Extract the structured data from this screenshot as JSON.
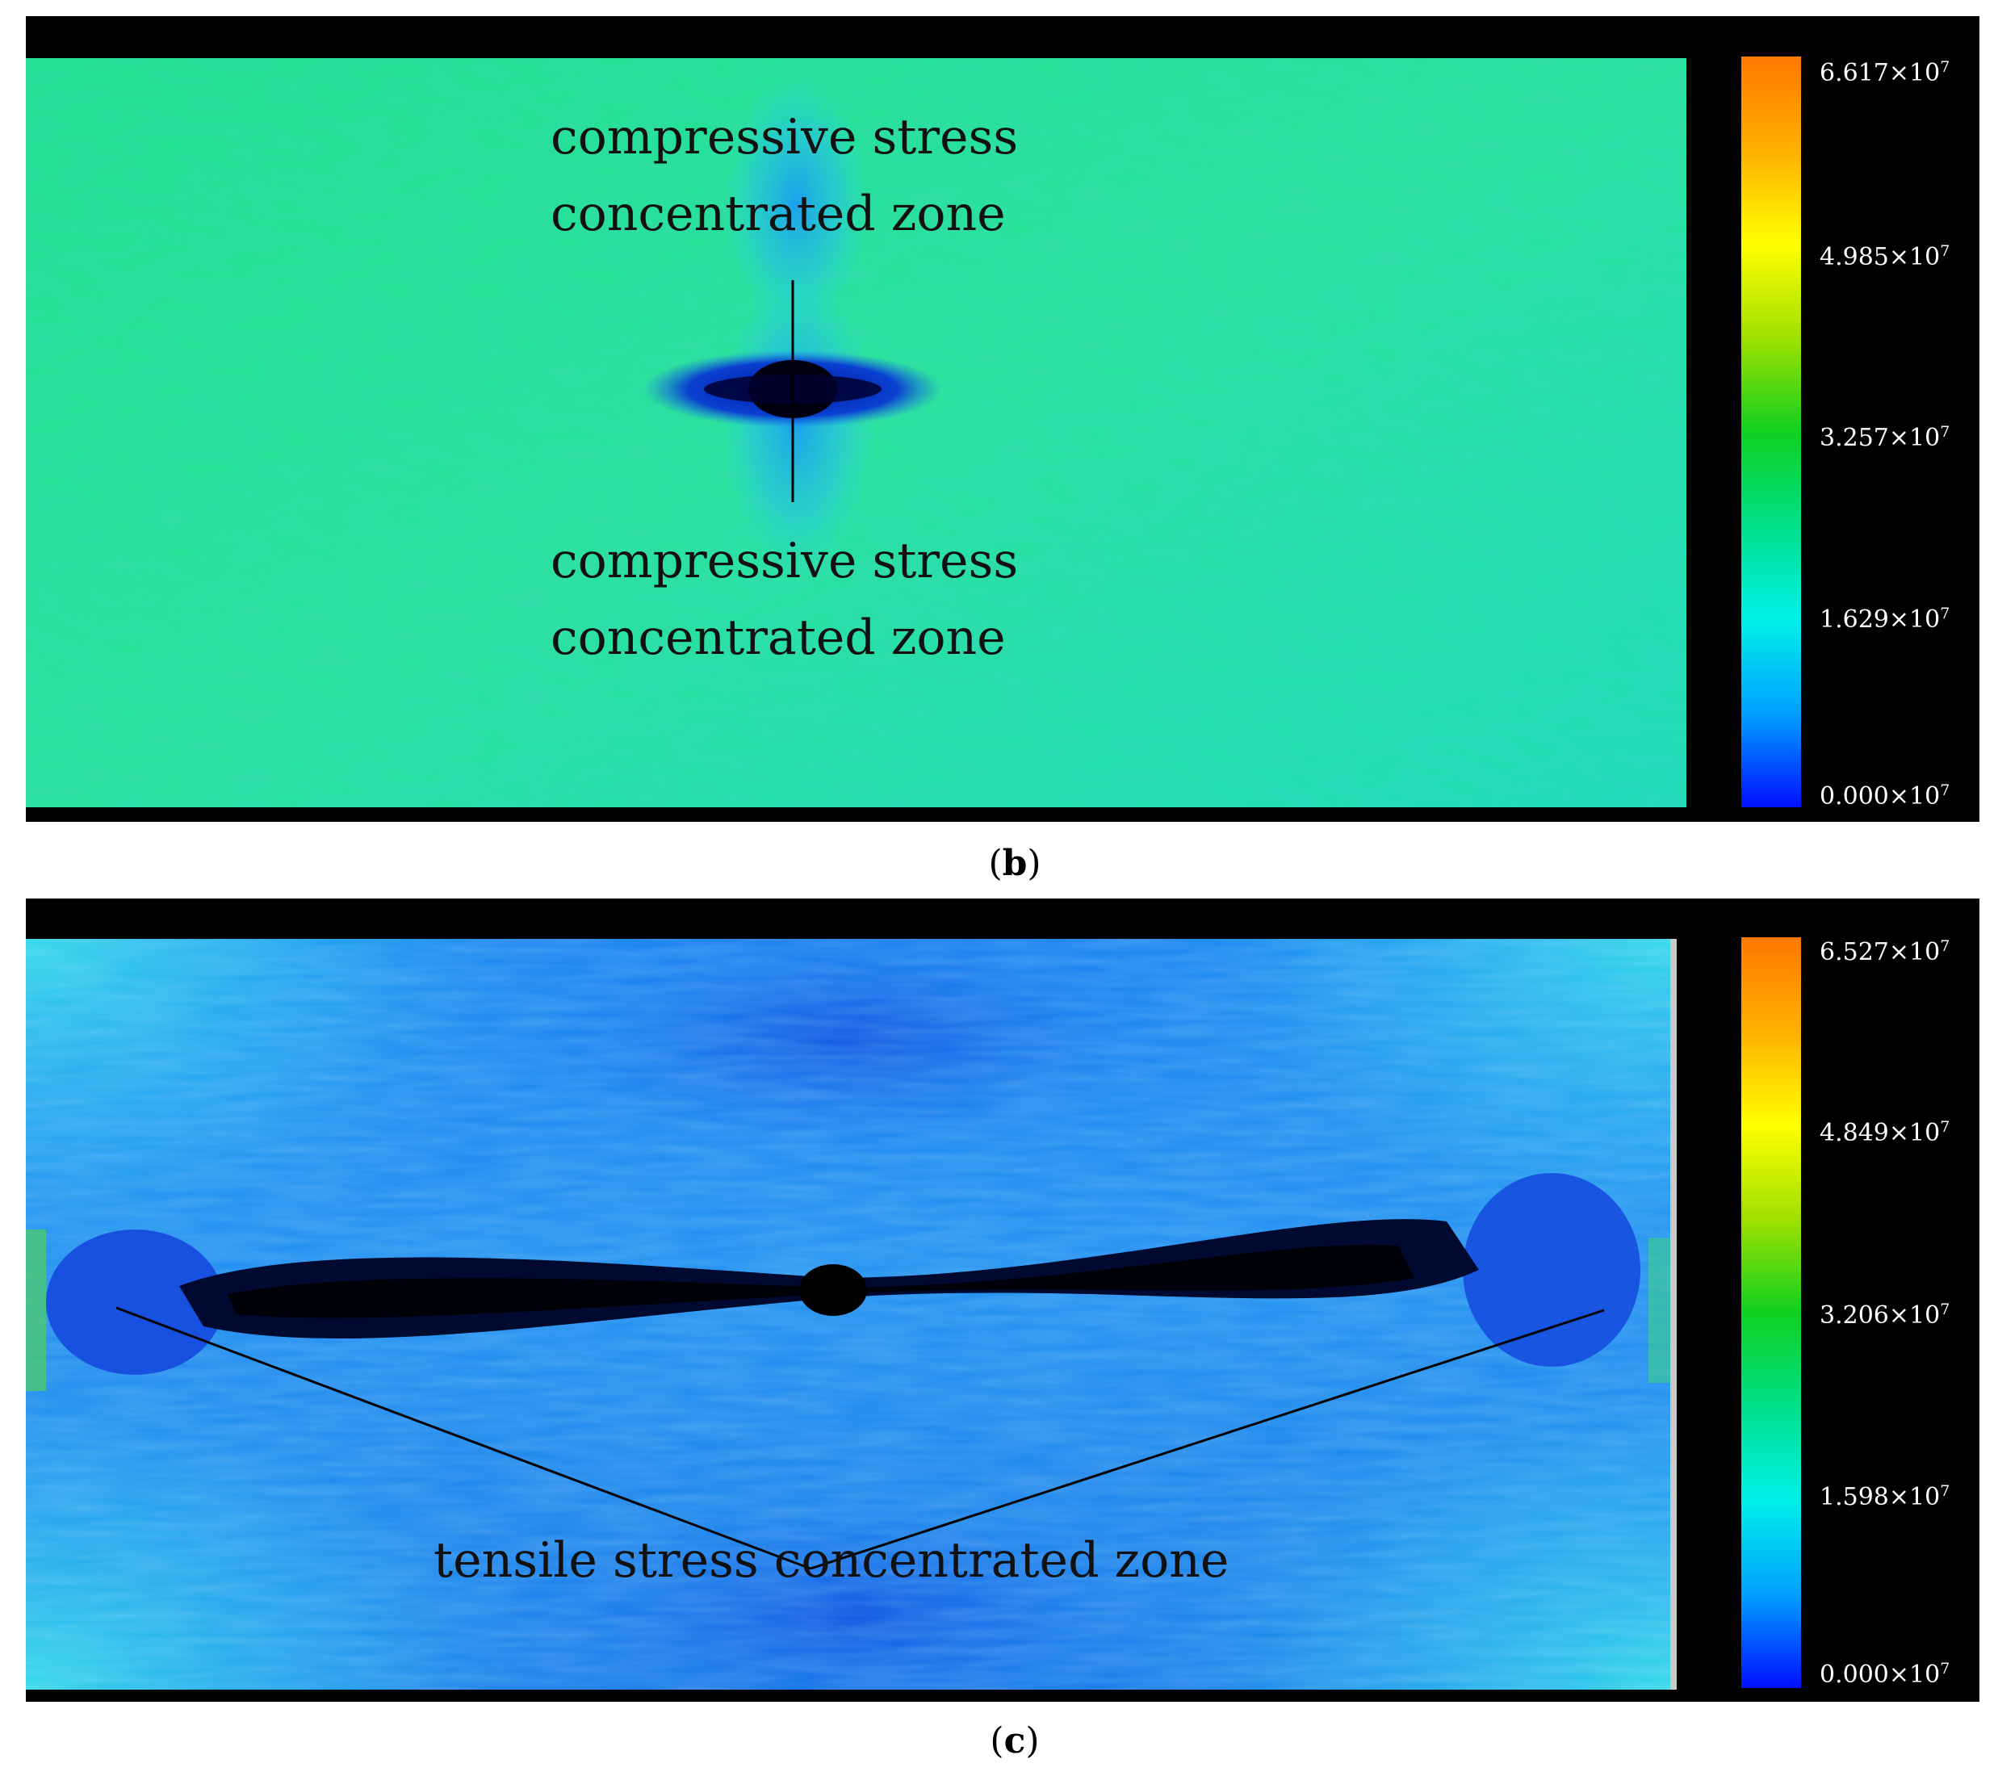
{
  "panel_b": {
    "caption_letter": "b",
    "annotation_top": [
      "compressive stress",
      "concentrated zone"
    ],
    "annotation_bottom": [
      "compressive stress",
      "concentrated zone"
    ],
    "colorbar": {
      "colors": [
        "#0010ff",
        "#00a0ff",
        "#00f0e8",
        "#00e08a",
        "#10d020",
        "#a0e000",
        "#ffff00",
        "#ffb000",
        "#ff7800"
      ],
      "ticks": [
        {
          "mantissa": "6.617",
          "exp": "7"
        },
        {
          "mantissa": "4.985",
          "exp": "7"
        },
        {
          "mantissa": "3.257",
          "exp": "7"
        },
        {
          "mantissa": "1.629",
          "exp": "7"
        },
        {
          "mantissa": "0.000",
          "exp": "7"
        }
      ]
    }
  },
  "panel_c": {
    "caption_letter": "c",
    "annotation": "tensile stress concentrated zone",
    "colorbar": {
      "colors": [
        "#0010ff",
        "#00a0ff",
        "#00f0e8",
        "#00e08a",
        "#10d020",
        "#a0e000",
        "#ffff00",
        "#ffb000",
        "#ff7800"
      ],
      "ticks": [
        {
          "mantissa": "6.527",
          "exp": "7"
        },
        {
          "mantissa": "4.849",
          "exp": "7"
        },
        {
          "mantissa": "3.206",
          "exp": "7"
        },
        {
          "mantissa": "1.598",
          "exp": "7"
        },
        {
          "mantissa": "0.000",
          "exp": "7"
        }
      ]
    }
  },
  "tick_separator": "×10"
}
